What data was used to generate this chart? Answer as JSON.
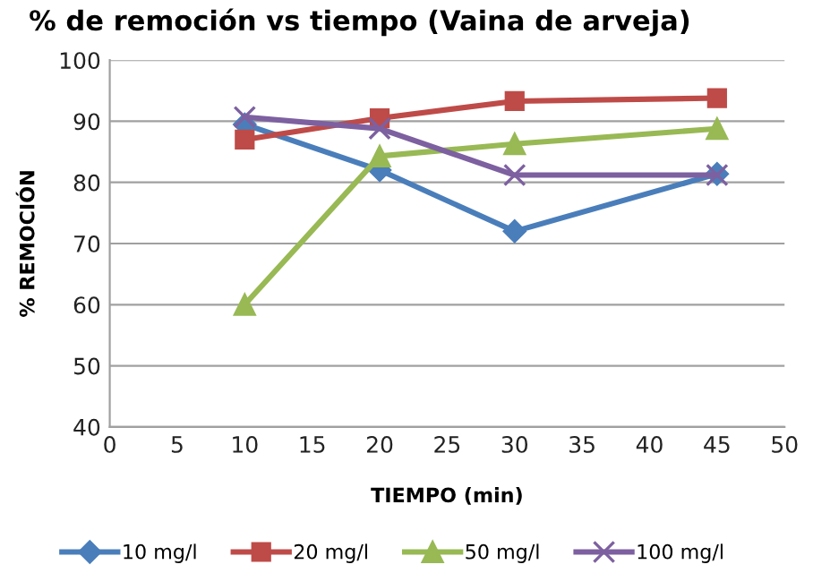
{
  "chart_data": {
    "type": "line",
    "title": "% de remoción vs tiempo (Vaina de arveja)",
    "xlabel": "TIEMPO (min)",
    "ylabel": "% REMOCIÓN",
    "series": [
      {
        "name": "10 mg/l",
        "color": "#4a7ebb",
        "marker": "diamond",
        "x": [
          10,
          20,
          30,
          45
        ],
        "values": [
          89.5,
          82,
          72,
          81.4
        ]
      },
      {
        "name": "20 mg/l",
        "color": "#be4b48",
        "marker": "square",
        "x": [
          10,
          20,
          30,
          45
        ],
        "values": [
          87,
          90.5,
          93.3,
          93.8
        ]
      },
      {
        "name": "50 mg/l",
        "color": "#98b954",
        "marker": "triangle",
        "x": [
          10,
          20,
          30,
          45
        ],
        "values": [
          60,
          84.3,
          86.3,
          88.8
        ]
      },
      {
        "name": "100 mg/l",
        "color": "#7d60a0",
        "marker": "cross",
        "x": [
          10,
          20,
          30,
          45
        ],
        "values": [
          90.7,
          88.8,
          81.2,
          81.2
        ]
      }
    ],
    "xlim": [
      0,
      50
    ],
    "xticks": [
      0,
      5,
      10,
      15,
      20,
      25,
      30,
      35,
      40,
      45,
      50
    ],
    "ylim": [
      40,
      100
    ],
    "yticks": [
      40,
      50,
      60,
      70,
      80,
      90,
      100
    ],
    "grid": "y",
    "legend": "bottom",
    "line_style": "solid"
  }
}
